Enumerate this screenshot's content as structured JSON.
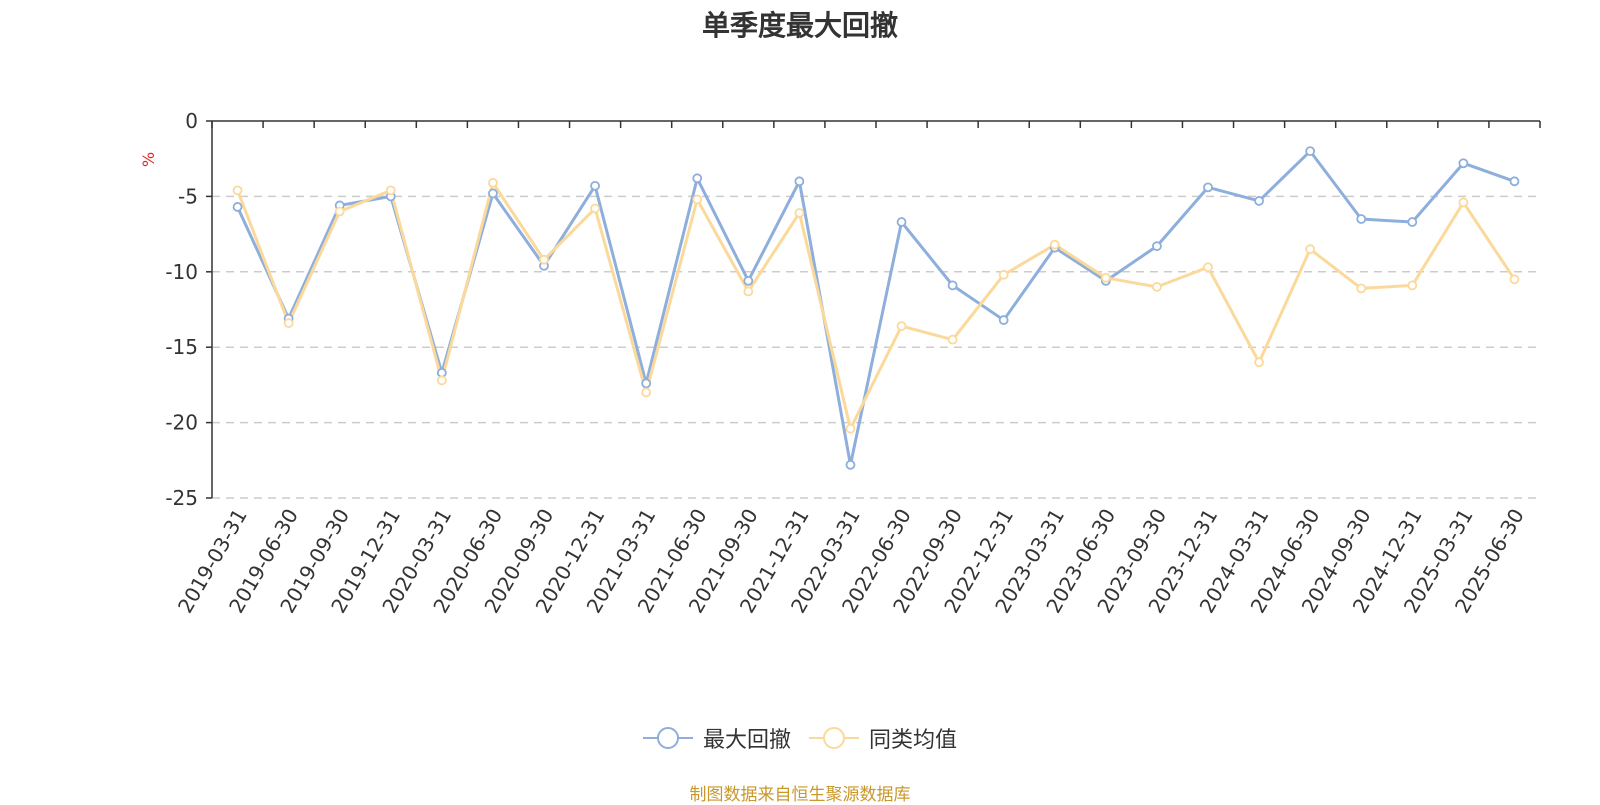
{
  "chart_data": {
    "type": "line",
    "title": "单季度最大回撤",
    "ylabel": "%",
    "ylim": [
      -25,
      0
    ],
    "yticks": [
      0,
      -5,
      -10,
      -15,
      -20,
      -25
    ],
    "grid": true,
    "legend_position": "bottom",
    "categories": [
      "2019-03-31",
      "2019-06-30",
      "2019-09-30",
      "2019-12-31",
      "2020-03-31",
      "2020-06-30",
      "2020-09-30",
      "2020-12-31",
      "2021-03-31",
      "2021-06-30",
      "2021-09-30",
      "2021-12-31",
      "2022-03-31",
      "2022-06-30",
      "2022-09-30",
      "2022-12-31",
      "2023-03-31",
      "2023-06-30",
      "2023-09-30",
      "2023-12-31",
      "2024-03-31",
      "2024-06-30",
      "2024-09-30",
      "2024-12-31",
      "2025-03-31",
      "2025-06-30"
    ],
    "series": [
      {
        "name": "最大回撤",
        "color": "#8eaedc",
        "values": [
          -5.7,
          -13.1,
          -5.6,
          -5.0,
          -16.7,
          -4.8,
          -9.6,
          -4.3,
          -17.4,
          -3.8,
          -10.6,
          -4.0,
          -22.8,
          -6.7,
          -10.9,
          -13.2,
          -8.4,
          -10.6,
          -8.3,
          -4.4,
          -5.3,
          -2.0,
          -6.5,
          -6.7,
          -2.8,
          -4.0
        ]
      },
      {
        "name": "同类均值",
        "color": "#fbd99b",
        "values": [
          -4.6,
          -13.4,
          -6.0,
          -4.6,
          -17.2,
          -4.1,
          -9.2,
          -5.8,
          -18.0,
          -5.2,
          -11.3,
          -6.1,
          -20.4,
          -13.6,
          -14.5,
          -10.2,
          -8.2,
          -10.4,
          -11.0,
          -9.7,
          -16.0,
          -8.5,
          -11.1,
          -10.9,
          -5.4,
          -10.5
        ]
      }
    ]
  },
  "legend": {
    "items": [
      "最大回撤",
      "同类均值"
    ]
  },
  "source": "制图数据来自恒生聚源数据库"
}
